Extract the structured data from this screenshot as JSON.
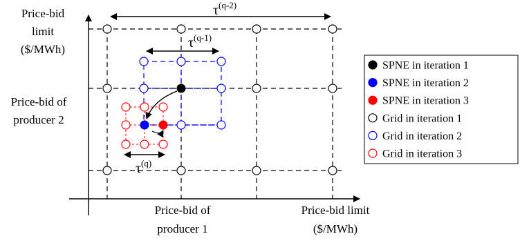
{
  "axes": {
    "y_top_line1": "Price-bid",
    "y_top_line2": "limit",
    "y_top_line3": "($/MWh)",
    "y_mid_line1": "Price-bid of",
    "y_mid_line2": "producer 2",
    "x_mid_line1": "Price-bid of",
    "x_mid_line2": "producer 1",
    "x_right_line1": "Price-bid limit",
    "x_right_line2": "($/MWh)"
  },
  "steps": {
    "tau_symbol": "τ",
    "tau_q2": "(q-2)",
    "tau_q1": "(q-1)",
    "tau_q": "(q)"
  },
  "legend": [
    {
      "label": "SPNE in iteration 1",
      "color": "#000000",
      "filled": true
    },
    {
      "label": "SPNE in iteration 2",
      "color": "#0000ff",
      "filled": true
    },
    {
      "label": "SPNE in iteration 3",
      "color": "#ff0000",
      "filled": true
    },
    {
      "label": "Grid in iteration 1",
      "color": "#000000",
      "filled": false
    },
    {
      "label": "Grid in iteration 2",
      "color": "#0000ff",
      "filled": false
    },
    {
      "label": "Grid in iteration 3",
      "color": "#ff0000",
      "filled": false
    }
  ]
}
